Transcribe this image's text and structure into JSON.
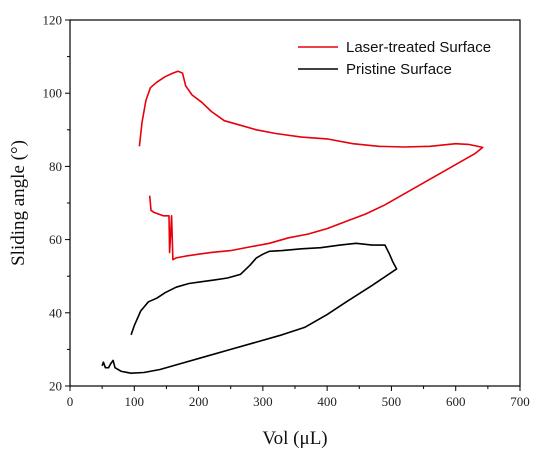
{
  "chart_data": {
    "type": "line",
    "xlabel": "Vol (μL)",
    "ylabel": "Sliding angle (°)",
    "xlim": [
      0,
      700
    ],
    "ylim": [
      20,
      120
    ],
    "xticks": [
      0,
      100,
      200,
      300,
      400,
      500,
      600,
      700
    ],
    "yticks": [
      20,
      40,
      60,
      80,
      100,
      120
    ],
    "grid": false,
    "legend_position": "top-right",
    "series": [
      {
        "name": "Laser-treated Surface",
        "color": "#e8000b",
        "points": [
          [
            108,
            85.5
          ],
          [
            112,
            92
          ],
          [
            118,
            98
          ],
          [
            125,
            101.5
          ],
          [
            135,
            103
          ],
          [
            148,
            104.5
          ],
          [
            160,
            105.5
          ],
          [
            168,
            106
          ],
          [
            175,
            105.5
          ],
          [
            180,
            102
          ],
          [
            190,
            99.5
          ],
          [
            205,
            97.5
          ],
          [
            220,
            95
          ],
          [
            240,
            92.5
          ],
          [
            260,
            91.5
          ],
          [
            290,
            90
          ],
          [
            320,
            89
          ],
          [
            360,
            88
          ],
          [
            400,
            87.5
          ],
          [
            440,
            86.2
          ],
          [
            480,
            85.5
          ],
          [
            520,
            85.3
          ],
          [
            560,
            85.5
          ],
          [
            600,
            86.2
          ],
          [
            620,
            86
          ],
          [
            642,
            85.2
          ],
          [
            630,
            83.5
          ],
          [
            600,
            80.5
          ],
          [
            560,
            76.5
          ],
          [
            520,
            72.5
          ],
          [
            490,
            69.5
          ],
          [
            460,
            67
          ],
          [
            430,
            65
          ],
          [
            400,
            63
          ],
          [
            370,
            61.5
          ],
          [
            340,
            60.5
          ],
          [
            310,
            59
          ],
          [
            280,
            58
          ],
          [
            250,
            57
          ],
          [
            220,
            56.5
          ],
          [
            200,
            56
          ],
          [
            180,
            55.5
          ],
          [
            165,
            55
          ],
          [
            160,
            54.5
          ],
          [
            158,
            66.5
          ],
          [
            155,
            56.5
          ],
          [
            154,
            66.5
          ],
          [
            145,
            66.5
          ],
          [
            130,
            67.5
          ],
          [
            126,
            68
          ],
          [
            124,
            72
          ]
        ]
      },
      {
        "name": "Pristine Surface",
        "color": "#000000",
        "points": [
          [
            95,
            34
          ],
          [
            100,
            36.5
          ],
          [
            110,
            40.5
          ],
          [
            122,
            43
          ],
          [
            135,
            44
          ],
          [
            148,
            45.5
          ],
          [
            165,
            47
          ],
          [
            185,
            48
          ],
          [
            205,
            48.5
          ],
          [
            225,
            49
          ],
          [
            245,
            49.5
          ],
          [
            265,
            50.5
          ],
          [
            280,
            53
          ],
          [
            290,
            55
          ],
          [
            300,
            56
          ],
          [
            310,
            56.8
          ],
          [
            330,
            57
          ],
          [
            360,
            57.5
          ],
          [
            390,
            57.8
          ],
          [
            420,
            58.5
          ],
          [
            445,
            59
          ],
          [
            470,
            58.5
          ],
          [
            490,
            58.5
          ],
          [
            497,
            56
          ],
          [
            502,
            54
          ],
          [
            508,
            52
          ],
          [
            470,
            47.5
          ],
          [
            430,
            43
          ],
          [
            400,
            39.5
          ],
          [
            365,
            36
          ],
          [
            330,
            34
          ],
          [
            290,
            32
          ],
          [
            250,
            30
          ],
          [
            210,
            28
          ],
          [
            170,
            26
          ],
          [
            140,
            24.5
          ],
          [
            115,
            23.7
          ],
          [
            95,
            23.5
          ],
          [
            80,
            24
          ],
          [
            70,
            25
          ],
          [
            67,
            27
          ],
          [
            63,
            26
          ],
          [
            60,
            25
          ],
          [
            55,
            25
          ],
          [
            52,
            26.5
          ],
          [
            50,
            25.5
          ]
        ]
      }
    ]
  }
}
